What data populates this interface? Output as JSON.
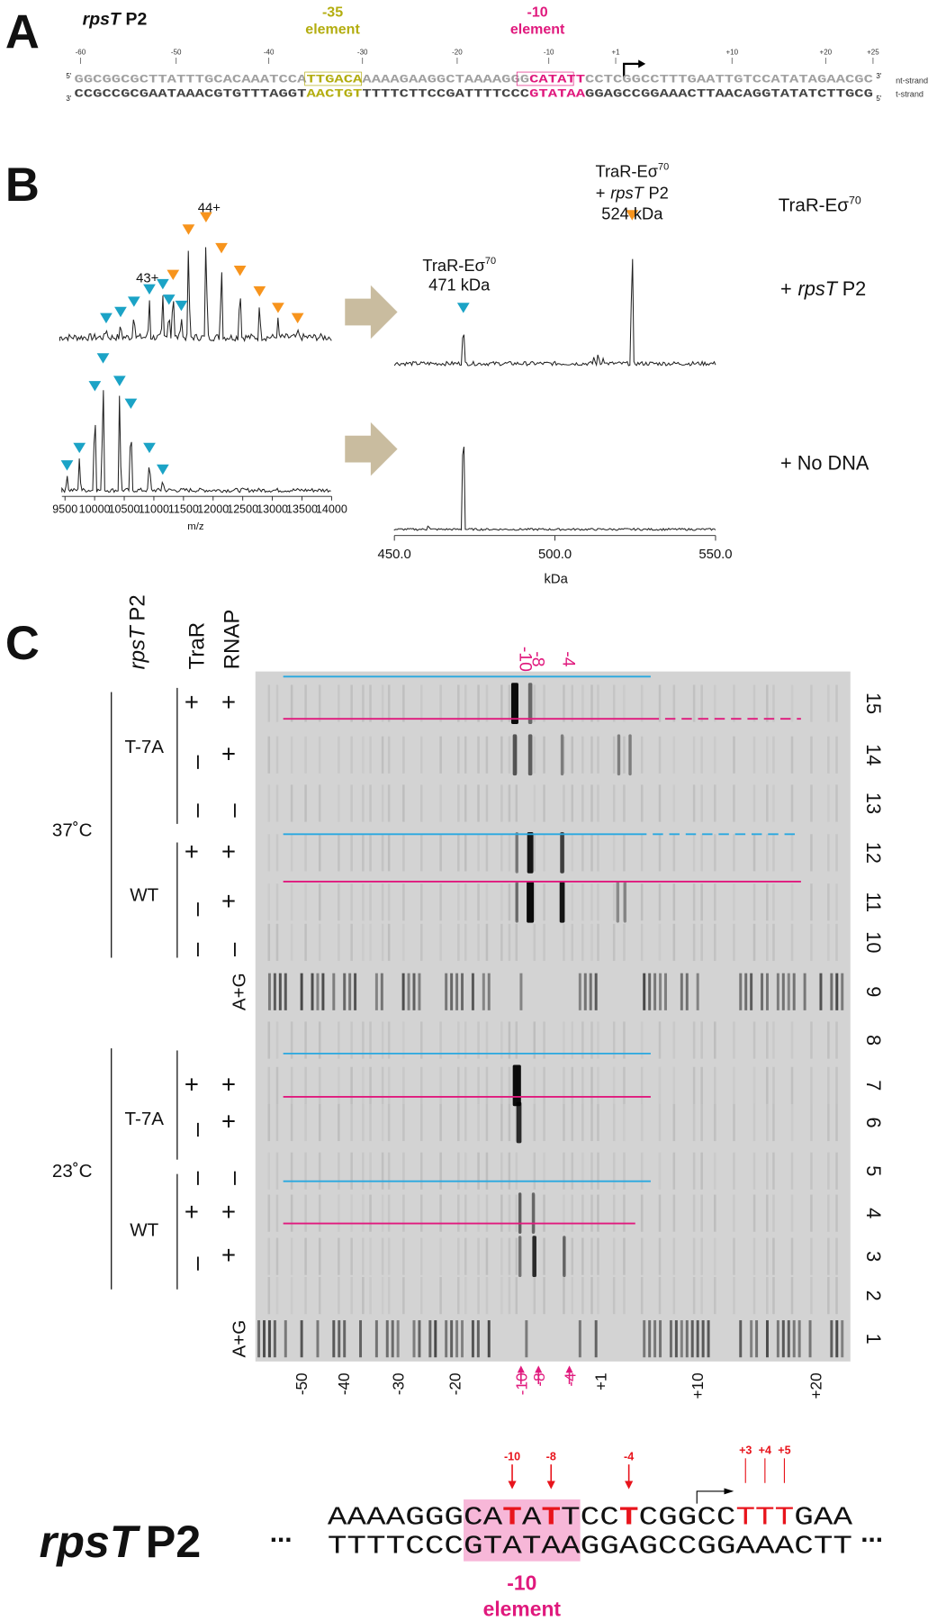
{
  "panel_a": {
    "label": "A",
    "gene": "rpsT",
    "promoter": "P2",
    "element_35": {
      "number": "-35",
      "word": "element"
    },
    "element_10": {
      "number": "-10",
      "word": "element"
    },
    "positions": [
      "-60",
      "-50",
      "-40",
      "-30",
      "-20",
      "-10",
      "+1",
      "+10",
      "+20",
      "+25"
    ],
    "nt_strand": {
      "label": "nt-strand",
      "five": "5'",
      "three": "3'",
      "segments": [
        "GGCGGCGCTTATTTGCACAAATCCA",
        "TTGACA",
        "AAAAGAAGGCTAAAAGGG",
        "CATATT",
        "CCTCGGCCTTTGAATTGTCCATATAGAACGC"
      ]
    },
    "t_strand": {
      "label": "t-strand",
      "three": "3'",
      "five": "5'",
      "segments": [
        "CCGCCGCGAATAAACGTGTTTAGGT",
        "AACTGT",
        "TTTTCTTCCGATTTTCCC",
        "GTATAA",
        "GGAGCCGGAAACTTAACAGGTATATCTTGCG"
      ]
    }
  },
  "panel_b": {
    "label": "B",
    "peak_44": "44+",
    "peak_43": "43+",
    "mz_ticks": [
      "9500",
      "10000",
      "10500",
      "11000",
      "11500",
      "12000",
      "12500",
      "13000",
      "13500",
      "14000"
    ],
    "mz_label": "m/z",
    "kda_ticks": [
      "450.0",
      "500.0",
      "550.0"
    ],
    "kda_label": "kDa",
    "peak_471": {
      "name": "TraR-Eσ",
      "sup": "70",
      "mass": "471 kDa"
    },
    "peak_524": {
      "name": "TraR-Eσ",
      "sup": "70",
      "plus": "+",
      "gene": "rpsT",
      "promoter": "P2",
      "mass": "524 kDa"
    },
    "complex": {
      "name": "TraR-Eσ",
      "sup": "70"
    },
    "with_dna": {
      "plus": "+",
      "gene": "rpsT",
      "promoter": "P2"
    },
    "no_dna": "+ No DNA"
  },
  "panel_c": {
    "label": "C",
    "gene": "rpsT",
    "promoter": "P2",
    "col_trar": "TraR",
    "col_rnap": "RNAP",
    "temps": [
      "37˚C",
      "23˚C"
    ],
    "groups": [
      "T-7A",
      "WT",
      "T-7A",
      "WT"
    ],
    "lanes": [
      {
        "number": "15",
        "trar": "+",
        "rnap": "+"
      },
      {
        "number": "14",
        "trar": "–",
        "rnap": "+"
      },
      {
        "number": "13",
        "trar": "–",
        "rnap": "–"
      },
      {
        "number": "12",
        "trar": "+",
        "rnap": "+"
      },
      {
        "number": "11",
        "trar": "–",
        "rnap": "+"
      },
      {
        "number": "10",
        "trar": "–",
        "rnap": "–"
      },
      {
        "number": "9",
        "marker": "A+G"
      },
      {
        "number": "8"
      },
      {
        "number": "7",
        "trar": "+",
        "rnap": "+"
      },
      {
        "number": "6",
        "trar": "–",
        "rnap": "+"
      },
      {
        "number": "5",
        "trar": "–",
        "rnap": "–"
      },
      {
        "number": "4",
        "trar": "+",
        "rnap": "+"
      },
      {
        "number": "3",
        "trar": "–",
        "rnap": "+"
      },
      {
        "number": "2"
      },
      {
        "number": "1",
        "marker": "A+G"
      }
    ],
    "top_marks": [
      "-10",
      "-8",
      "-4"
    ],
    "axis": [
      "-50",
      "-40",
      "-30",
      "-20",
      "-10",
      "-8",
      "-4",
      "+1",
      "+10",
      "+20"
    ],
    "sequence": {
      "gene": "rpsT",
      "promoter": "P2",
      "ellipsis": "...",
      "top": [
        "AAAAGGG",
        "CA",
        "T",
        "A",
        "T",
        "TCC",
        "T",
        "CGGCC",
        "TTT",
        "GAA"
      ],
      "bottom": [
        "TTTTCCC",
        "GTATAA",
        "GGAGCCGGAAACTT"
      ],
      "marks": [
        "-10",
        "-8",
        "-4",
        "+3",
        "+4",
        "+5"
      ],
      "element": {
        "number": "-10",
        "word": "element"
      }
    }
  }
}
